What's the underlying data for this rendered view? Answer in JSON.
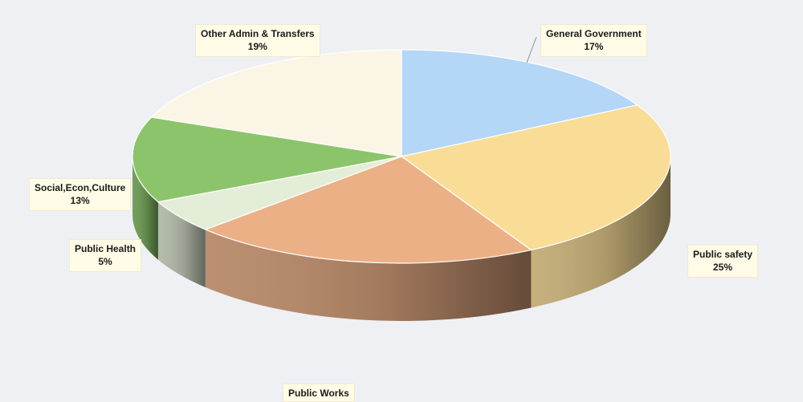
{
  "chart_data": {
    "type": "pie",
    "style": "3d",
    "title": "",
    "legend": "none",
    "slices": [
      {
        "label": "General Government",
        "value": 17,
        "value_label": "17%",
        "color": "#b4d6f7"
      },
      {
        "label": "Public safety",
        "value": 25,
        "value_label": "25%",
        "color": "#f9dd97"
      },
      {
        "label": "Public Works",
        "value": 21,
        "value_label": "",
        "color": "#ecb086"
      },
      {
        "label": "Public Health",
        "value": 5,
        "value_label": "5%",
        "color": "#e3edd7"
      },
      {
        "label": "Social,Econ,Culture",
        "value": 13,
        "value_label": "13%",
        "color": "#8cc46c"
      },
      {
        "label": "Other Admin & Transfers",
        "value": 19,
        "value_label": "19%",
        "color": "#fbf5e6"
      }
    ]
  }
}
